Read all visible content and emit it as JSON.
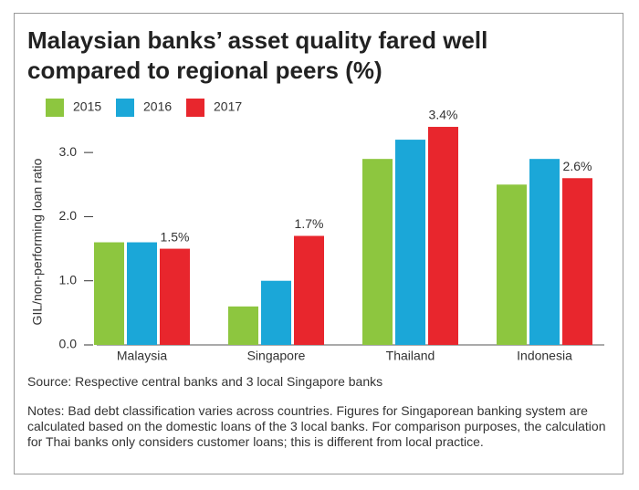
{
  "chart_data": {
    "type": "bar",
    "title": "Malaysian banks’ asset quality fared well compared to regional peers (%)",
    "y_label": "GIL/non-performing loan ratio",
    "categories": [
      "Malaysia",
      "Singapore",
      "Thailand",
      "Indonesia"
    ],
    "series": [
      {
        "name": "2015",
        "color": "#8dc63f",
        "values": [
          1.6,
          0.6,
          2.9,
          2.5
        ]
      },
      {
        "name": "2016",
        "color": "#1ba7d8",
        "values": [
          1.6,
          1.0,
          3.2,
          2.9
        ]
      },
      {
        "name": "2017",
        "color": "#e8262d",
        "values": [
          1.5,
          1.7,
          3.4,
          2.6
        ],
        "value_labels": [
          "1.5%",
          "1.7%",
          "3.4%",
          "2.6%"
        ]
      }
    ],
    "ylim": [
      0,
      3.5
    ],
    "yticks": [
      {
        "value": 0,
        "label": "0.0"
      },
      {
        "value": 1,
        "label": "1.0"
      },
      {
        "value": 2,
        "label": "2.0"
      },
      {
        "value": 3,
        "label": "3.0"
      }
    ],
    "legend": "top-left",
    "source": "Source: Respective central banks and 3 local Singapore banks",
    "notes": "Notes: Bad debt classification varies across countries. Figures for Singaporean banking system are calculated based on the domestic loans of the 3 local banks. For comparison purposes, the calculation for Thai banks only considers customer loans; this is different from local practice."
  }
}
